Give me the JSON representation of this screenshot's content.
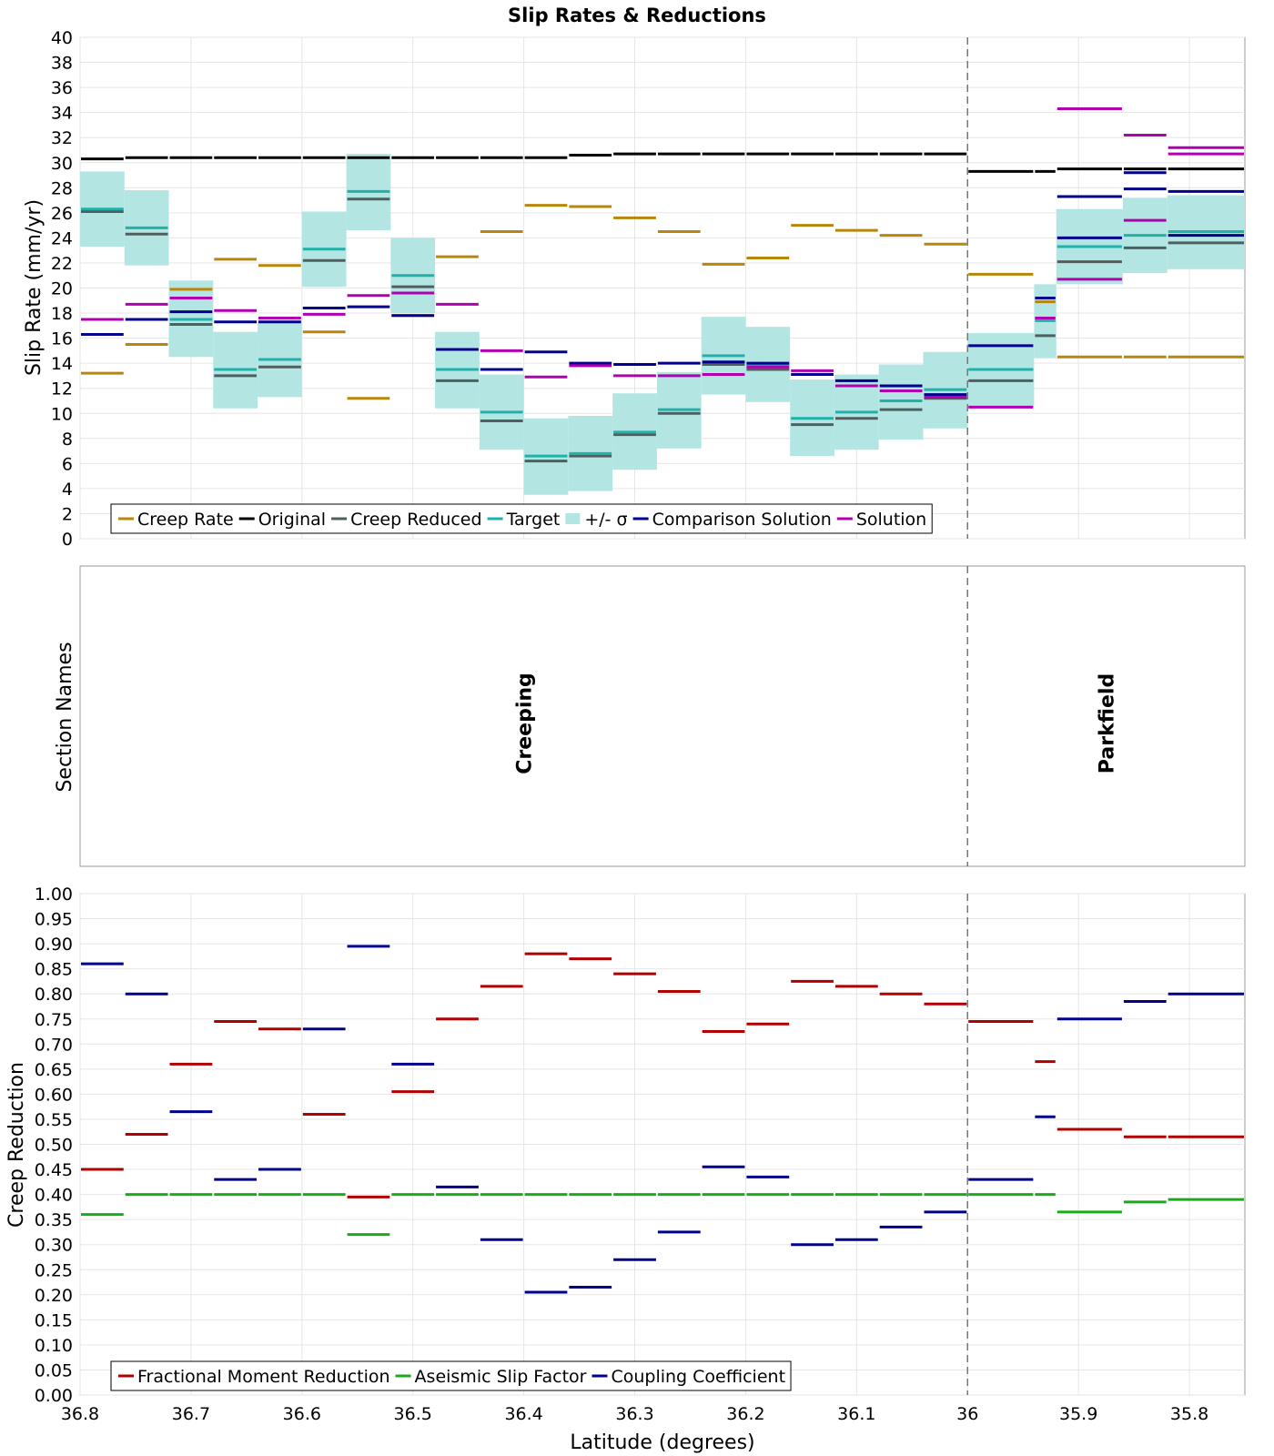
{
  "chart_data": {
    "type": "line",
    "title": "Slip Rates & Reductions",
    "xlabel": "Latitude (degrees)",
    "xlim": [
      36.8,
      35.75
    ],
    "xticks": [
      36.8,
      36.7,
      36.6,
      36.5,
      36.4,
      36.3,
      36.2,
      36.1,
      36,
      35.9,
      35.8
    ],
    "xtick_labels": [
      "36.8",
      "36.7",
      "36.6",
      "36.5",
      "36.4",
      "36.3",
      "36.2",
      "36.1",
      "36",
      "35.9",
      "35.8"
    ],
    "section_boundary_x": 36.0,
    "segment_bounds": [
      36.8,
      36.76,
      36.72,
      36.68,
      36.64,
      36.6,
      36.56,
      36.52,
      36.48,
      36.44,
      36.4,
      36.36,
      36.32,
      36.28,
      36.24,
      36.2,
      36.16,
      36.12,
      36.08,
      36.04,
      36.0,
      35.94,
      35.92,
      35.86,
      35.82,
      35.75
    ],
    "panels": {
      "slip": {
        "ylabel": "Slip Rate (mm/yr)",
        "ylim": [
          0,
          40
        ],
        "yticks": [
          0,
          2,
          4,
          6,
          8,
          10,
          12,
          14,
          16,
          18,
          20,
          22,
          24,
          26,
          28,
          30,
          32,
          34,
          36,
          38,
          40
        ],
        "legend": [
          "Creep Rate",
          "Original",
          "Creep Reduced",
          "Target",
          "+/- σ",
          "Comparison Solution",
          "Solution"
        ],
        "series": [
          {
            "name": "Creep Rate",
            "color": "#b8860b",
            "values": [
              13.2,
              15.5,
              19.9,
              22.3,
              21.8,
              16.5,
              11.2,
              17.8,
              22.5,
              24.5,
              26.6,
              26.5,
              25.6,
              24.5,
              21.9,
              22.4,
              25.0,
              24.6,
              24.2,
              23.5,
              21.1,
              18.9,
              14.5,
              14.5,
              14.5
            ]
          },
          {
            "name": "Original",
            "color": "#000000",
            "values": [
              30.3,
              30.4,
              30.4,
              30.4,
              30.4,
              30.4,
              30.4,
              30.4,
              30.4,
              30.4,
              30.4,
              30.6,
              30.7,
              30.7,
              30.7,
              30.7,
              30.7,
              30.7,
              30.7,
              30.7,
              29.3,
              29.3,
              29.5,
              29.5,
              29.5
            ]
          },
          {
            "name": "Creep Reduced",
            "color": "#4f5f5f",
            "values": [
              26.1,
              24.3,
              17.1,
              13.0,
              13.7,
              22.2,
              27.1,
              20.1,
              12.6,
              9.4,
              6.2,
              6.6,
              8.3,
              10.0,
              13.9,
              13.5,
              9.1,
              9.6,
              10.3,
              11.2,
              12.6,
              16.2,
              22.1,
              23.2,
              23.6
            ]
          },
          {
            "name": "Target",
            "color": "#20b2aa",
            "values": [
              26.3,
              24.8,
              17.5,
              13.5,
              14.3,
              23.1,
              27.7,
              21.0,
              13.5,
              10.1,
              6.6,
              6.8,
              8.5,
              10.3,
              14.6,
              13.9,
              9.6,
              10.1,
              11.0,
              11.9,
              13.5,
              17.4,
              23.3,
              24.2,
              24.5
            ]
          },
          {
            "name": "Comparison Solution",
            "color": "#00008b",
            "values": [
              16.3,
              17.5,
              18.1,
              17.3,
              17.3,
              18.4,
              18.5,
              17.8,
              15.1,
              13.5,
              14.9,
              14.0,
              13.9,
              14.0,
              14.1,
              14.0,
              13.1,
              12.6,
              12.2,
              11.5,
              15.4,
              19.2,
              24.0,
              29.2,
              24.2
            ]
          },
          {
            "name": "Solution",
            "color": "#b000b0",
            "values": [
              17.5,
              18.7,
              19.2,
              18.2,
              17.6,
              17.9,
              19.4,
              19.6,
              18.7,
              15.0,
              12.9,
              13.8,
              13.0,
              13.0,
              13.1,
              13.7,
              13.4,
              12.2,
              11.8,
              11.3,
              10.5,
              17.6,
              20.7,
              25.4,
              31.2
            ]
          }
        ],
        "extra_marks": [
          {
            "series": "Comparison Solution",
            "values": [
              27.3,
              27.9,
              27.7
            ]
          },
          {
            "series": "Solution",
            "values": [
              34.3,
              32.2,
              30.7
            ]
          }
        ],
        "sigma_band": {
          "name": "+/- σ",
          "color": "#b3e6e3",
          "lower": [
            23.3,
            21.8,
            14.5,
            10.4,
            11.3,
            20.1,
            24.6,
            18.0,
            10.4,
            7.1,
            3.5,
            3.8,
            5.5,
            7.2,
            11.5,
            10.9,
            6.6,
            7.1,
            7.9,
            8.8,
            10.6,
            14.4,
            20.3,
            21.2,
            21.5
          ],
          "upper": [
            29.3,
            27.8,
            20.6,
            16.5,
            17.4,
            26.1,
            30.7,
            24.0,
            16.5,
            13.1,
            9.6,
            9.8,
            11.6,
            13.3,
            17.7,
            16.9,
            12.7,
            13.1,
            13.9,
            14.9,
            16.4,
            20.3,
            26.3,
            27.2,
            27.4
          ]
        }
      },
      "sections": {
        "ylabel": "Section Names",
        "labels": [
          {
            "text": "Creeping",
            "x": 36.4
          },
          {
            "text": "Parkfield",
            "x": 35.875
          }
        ]
      },
      "reduction": {
        "ylabel": "Creep Reduction",
        "ylim": [
          0,
          1
        ],
        "yticks": [
          "0.00",
          "0.05",
          "0.10",
          "0.15",
          "0.20",
          "0.25",
          "0.30",
          "0.35",
          "0.40",
          "0.45",
          "0.50",
          "0.55",
          "0.60",
          "0.65",
          "0.70",
          "0.75",
          "0.80",
          "0.85",
          "0.90",
          "0.95",
          "1.00"
        ],
        "legend": [
          "Fractional Moment Reduction",
          "Aseismic Slip Factor",
          "Coupling Coefficient"
        ],
        "series": [
          {
            "name": "Fractional Moment Reduction",
            "color": "#b00000",
            "values": [
              0.45,
              0.52,
              0.66,
              0.745,
              0.73,
              0.56,
              0.395,
              0.605,
              0.75,
              0.815,
              0.88,
              0.87,
              0.84,
              0.805,
              0.725,
              0.74,
              0.825,
              0.815,
              0.8,
              0.78,
              0.745,
              0.665,
              0.53,
              0.515,
              0.515
            ]
          },
          {
            "name": "Aseismic Slip Factor",
            "color": "#1aaa1a",
            "values": [
              0.36,
              0.4,
              0.4,
              0.4,
              0.4,
              0.4,
              0.32,
              0.4,
              0.4,
              0.4,
              0.4,
              0.4,
              0.4,
              0.4,
              0.4,
              0.4,
              0.4,
              0.4,
              0.4,
              0.4,
              0.4,
              0.4,
              0.365,
              0.385,
              0.39
            ]
          },
          {
            "name": "Coupling Coefficient",
            "color": "#00008b",
            "values": [
              0.86,
              0.8,
              0.565,
              0.43,
              0.45,
              0.73,
              0.895,
              0.66,
              0.415,
              0.31,
              0.205,
              0.215,
              0.27,
              0.325,
              0.455,
              0.435,
              0.3,
              0.31,
              0.335,
              0.365,
              0.43,
              0.555,
              0.75,
              0.785,
              0.8
            ]
          }
        ]
      }
    }
  }
}
